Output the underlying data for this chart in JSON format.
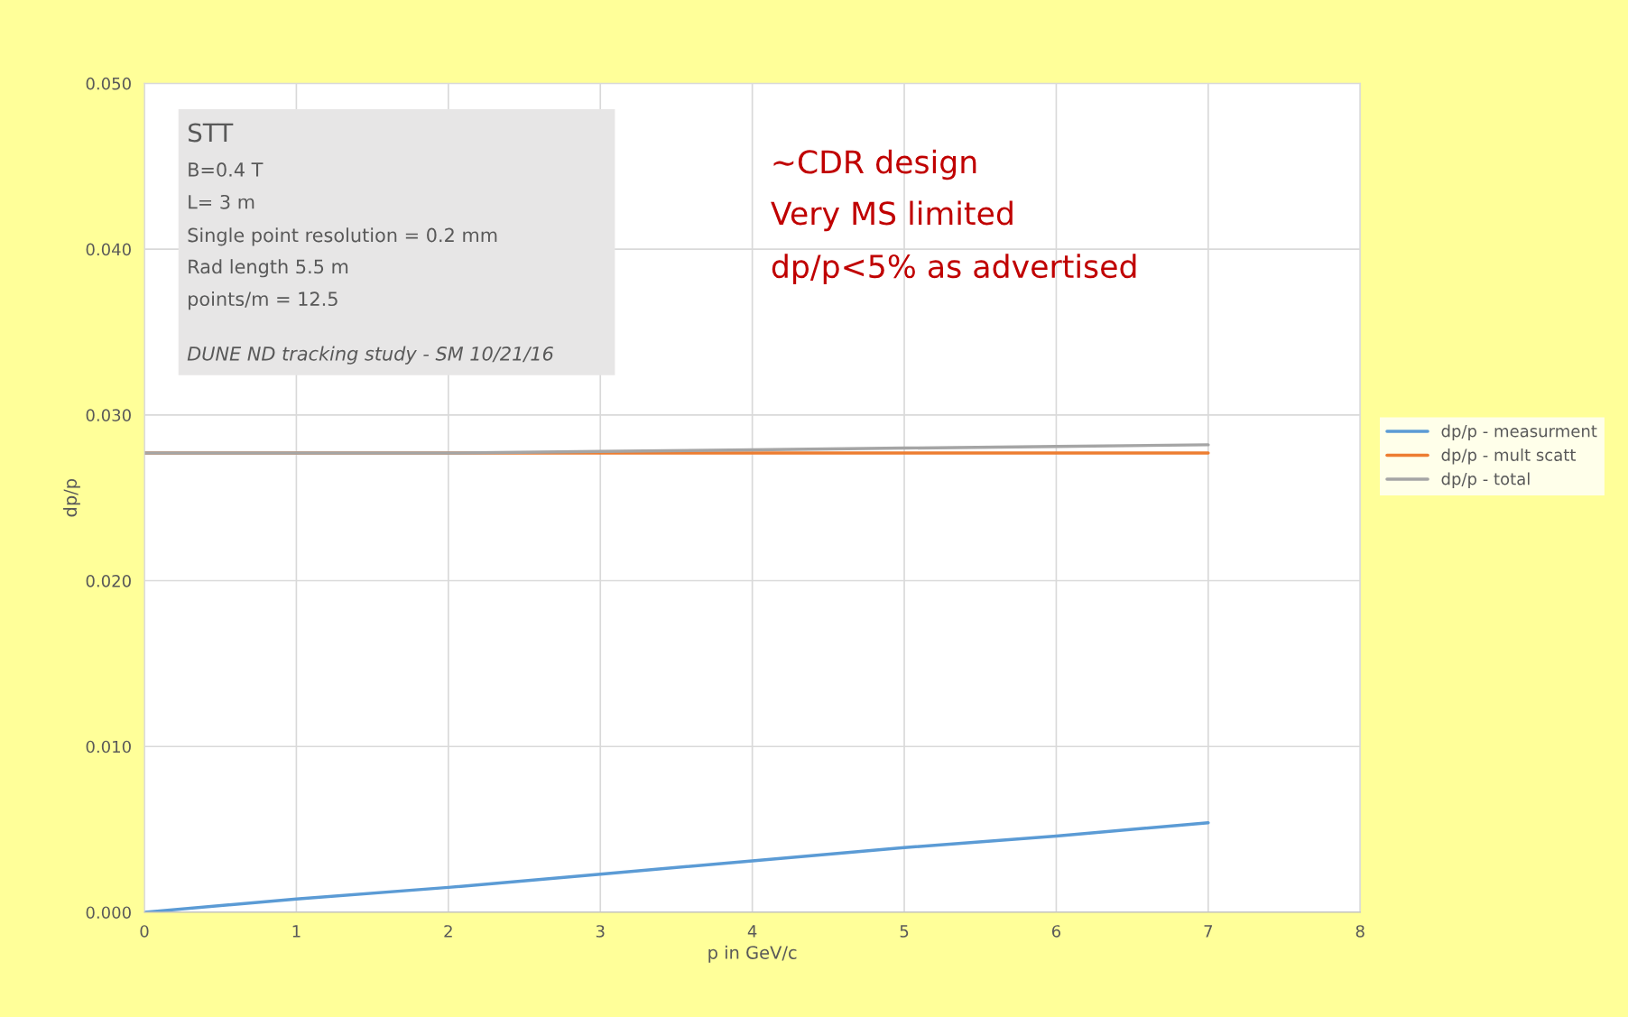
{
  "chart_data": {
    "type": "line",
    "xlabel": "p in GeV/c",
    "ylabel": "dp/p",
    "x": [
      0,
      1,
      2,
      3,
      4,
      5,
      6,
      7
    ],
    "series": [
      {
        "name": "dp/p - measurment",
        "color": "#5b9bd5",
        "values": [
          0,
          0.0008,
          0.0015,
          0.0023,
          0.0031,
          0.0039,
          0.0046,
          0.0054
        ]
      },
      {
        "name": "dp/p - mult scatt",
        "color": "#ed7d31",
        "values": [
          0.0277,
          0.0277,
          0.0277,
          0.0277,
          0.0277,
          0.0277,
          0.0277,
          0.0277
        ]
      },
      {
        "name": "dp/p - total",
        "color": "#a5a5a5",
        "values": [
          0.0277,
          0.0277,
          0.0277,
          0.0278,
          0.0279,
          0.028,
          0.0281,
          0.0282
        ]
      }
    ],
    "xlim": [
      0,
      8
    ],
    "xticks": [
      0,
      1,
      2,
      3,
      4,
      5,
      6,
      7,
      8
    ],
    "ylim": [
      0,
      0.05
    ],
    "yticks": [
      {
        "value": 0,
        "label": "0.000"
      },
      {
        "value": 0.01,
        "label": "0.010"
      },
      {
        "value": 0.02,
        "label": "0.020"
      },
      {
        "value": 0.03,
        "label": "0.030"
      },
      {
        "value": 0.04,
        "label": "0.040"
      },
      {
        "value": 0.05,
        "label": "0.050"
      }
    ],
    "grid": true,
    "legend": "right",
    "marker": "none",
    "line_style": "solid",
    "annotations": [
      "STT",
      "B=0.4 T",
      "L= 3 m",
      "Single point resolution = 0.2 mm",
      "Rad length 5.5 m",
      "points/m = 12.5",
      "DUNE ND tracking study - SM 10/21/16",
      "~CDR design",
      "Very MS limited",
      "dp/p<5% as advertised"
    ]
  }
}
